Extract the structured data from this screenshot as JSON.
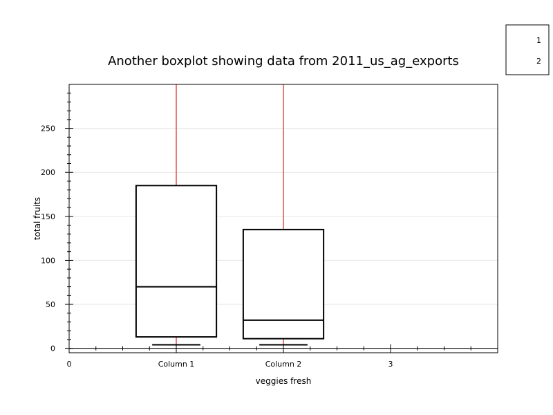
{
  "chart_data": {
    "type": "boxplot",
    "title": "Another  boxplot showing data from 2011_us_ag_exports",
    "xlabel": "veggies fresh",
    "ylabel": "total fruits",
    "ylim": [
      -5,
      300
    ],
    "xlim": [
      0,
      4
    ],
    "yticks": [
      0,
      50,
      100,
      150,
      200,
      250
    ],
    "xticks": [
      {
        "value": 0,
        "label": "0"
      },
      {
        "value": 1,
        "label": "Column 1"
      },
      {
        "value": 2,
        "label": "Column 2"
      },
      {
        "value": 3,
        "label": "3"
      }
    ],
    "grid": true,
    "legend": {
      "placement": "top-right",
      "entries": [
        "1",
        "2"
      ]
    },
    "series": [
      {
        "x": 1,
        "whisker_low": 4,
        "q1": 13,
        "median": 70,
        "q3": 185,
        "whisker_high": 300
      },
      {
        "x": 2,
        "whisker_low": 4,
        "q1": 11,
        "median": 32,
        "q3": 135,
        "whisker_high": 300
      }
    ],
    "colors": {
      "whisker": "#d9534f",
      "box": "#000000",
      "grid": "#e6e6e6"
    }
  }
}
